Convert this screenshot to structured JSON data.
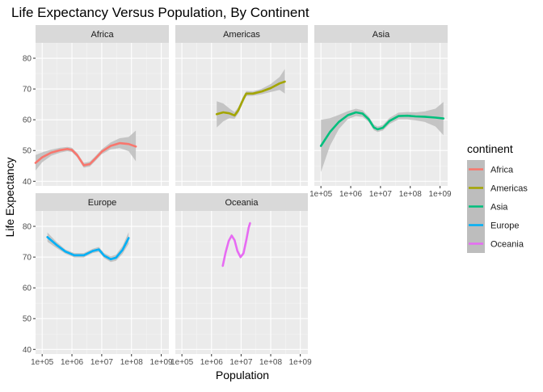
{
  "chart_data": {
    "type": "line",
    "title": "Life Expectancy Versus Population, By Continent",
    "xlabel": "Population",
    "ylabel": "Life Expectancy",
    "x_scale": "log10",
    "xlim": [
      60000,
      1800000000
    ],
    "ylim": [
      38.5,
      85
    ],
    "x_ticks": [
      100000,
      1000000,
      10000000,
      100000000,
      1000000000
    ],
    "x_tick_labels": [
      "1e+05",
      "1e+06",
      "1e+07",
      "1e+08",
      "1e+09"
    ],
    "y_ticks": [
      40,
      50,
      60,
      70,
      80
    ],
    "y_tick_labels": [
      "40",
      "50",
      "60",
      "70",
      "80"
    ],
    "grid": true,
    "legend": {
      "title": "continent",
      "position": "right",
      "entries": [
        "Africa",
        "Americas",
        "Asia",
        "Europe",
        "Oceania"
      ]
    },
    "colors": {
      "Africa": "#F8766D",
      "Americas": "#A3A500",
      "Asia": "#00BF7D",
      "Europe": "#00B0F6",
      "Oceania": "#E76BF3",
      "ribbon": "#bdbdbd",
      "panel_bg": "#ebebeb",
      "strip_bg": "#d9d9d9"
    },
    "series": [
      {
        "name": "Africa",
        "x": [
          60000,
          100000,
          200000,
          400000,
          700000,
          1000000,
          1500000,
          2500000,
          4000000,
          6000000,
          10000000,
          20000000,
          40000000,
          80000000,
          140000000
        ],
        "y": [
          46.0,
          47.8,
          49.3,
          50.1,
          50.5,
          50.2,
          48.5,
          45.2,
          45.6,
          47.3,
          49.6,
          51.5,
          52.4,
          52.1,
          51.3
        ],
        "lower": [
          43.5,
          46.2,
          48.3,
          49.3,
          49.8,
          49.5,
          47.8,
          44.4,
          44.8,
          46.5,
          48.8,
          50.4,
          50.8,
          49.8,
          46.5
        ],
        "upper": [
          48.5,
          49.4,
          50.3,
          50.9,
          51.2,
          50.9,
          49.2,
          46.0,
          46.4,
          48.1,
          50.4,
          52.6,
          54.0,
          54.4,
          56.5
        ]
      },
      {
        "name": "Americas",
        "x": [
          1500000,
          2500000,
          4000000,
          6000000,
          8000000,
          12000000,
          15000000,
          25000000,
          50000000,
          100000000,
          200000000,
          300000000
        ],
        "y": [
          61.8,
          62.4,
          62.1,
          61.4,
          63.0,
          66.8,
          68.5,
          68.5,
          69.2,
          70.3,
          71.8,
          72.4
        ],
        "lower": [
          57.5,
          59.5,
          60.5,
          60.3,
          62.0,
          65.8,
          67.7,
          67.8,
          68.3,
          69.0,
          69.7,
          68.5
        ],
        "upper": [
          66.0,
          65.3,
          63.7,
          62.5,
          64.0,
          67.8,
          69.3,
          69.2,
          70.1,
          71.6,
          73.9,
          76.5
        ]
      },
      {
        "name": "Asia",
        "x": [
          100000,
          200000,
          400000,
          800000,
          1500000,
          2500000,
          4000000,
          6000000,
          8000000,
          12000000,
          20000000,
          40000000,
          80000000,
          150000000,
          300000000,
          700000000,
          1300000000
        ],
        "y": [
          51.5,
          56.0,
          59.3,
          61.5,
          62.4,
          62.0,
          60.2,
          57.5,
          56.9,
          57.4,
          59.6,
          61.2,
          61.3,
          61.1,
          61.0,
          60.7,
          60.4
        ],
        "lower": [
          43.0,
          51.5,
          57.0,
          60.2,
          61.2,
          60.9,
          59.3,
          56.6,
          56.0,
          56.5,
          58.6,
          60.1,
          60.1,
          59.8,
          59.3,
          57.8,
          55.0
        ],
        "upper": [
          60.0,
          60.5,
          61.6,
          62.8,
          63.6,
          63.1,
          61.1,
          58.4,
          57.8,
          58.3,
          60.6,
          62.3,
          62.5,
          62.4,
          62.7,
          63.6,
          65.8
        ]
      },
      {
        "name": "Europe",
        "x": [
          150000,
          300000,
          600000,
          1200000,
          2500000,
          5000000,
          8000000,
          12000000,
          20000000,
          30000000,
          50000000,
          80000000
        ],
        "y": [
          76.5,
          74.0,
          71.8,
          70.6,
          70.6,
          72.0,
          72.5,
          70.5,
          69.3,
          69.8,
          72.3,
          76.2
        ],
        "lower": [
          75.0,
          73.0,
          71.1,
          69.9,
          69.9,
          71.3,
          71.7,
          69.7,
          68.4,
          68.8,
          71.0,
          74.3
        ],
        "upper": [
          78.0,
          75.0,
          72.5,
          71.3,
          71.3,
          72.7,
          73.3,
          71.3,
          70.2,
          70.8,
          73.6,
          78.1
        ]
      },
      {
        "name": "Oceania",
        "x": [
          2400000,
          3000000,
          3800000,
          4800000,
          6000000,
          7500000,
          9500000,
          12000000,
          15000000,
          18000000,
          20000000
        ],
        "y": [
          67.2,
          71.5,
          75.2,
          77.0,
          75.5,
          72.0,
          70.0,
          71.2,
          75.5,
          79.5,
          81.0
        ],
        "lower": [
          66.5,
          70.8,
          74.6,
          76.5,
          75.0,
          71.5,
          69.5,
          70.6,
          74.9,
          78.8,
          80.2
        ],
        "upper": [
          67.9,
          72.2,
          75.8,
          77.5,
          76.0,
          72.5,
          70.5,
          71.8,
          76.1,
          80.2,
          81.8
        ]
      }
    ]
  }
}
